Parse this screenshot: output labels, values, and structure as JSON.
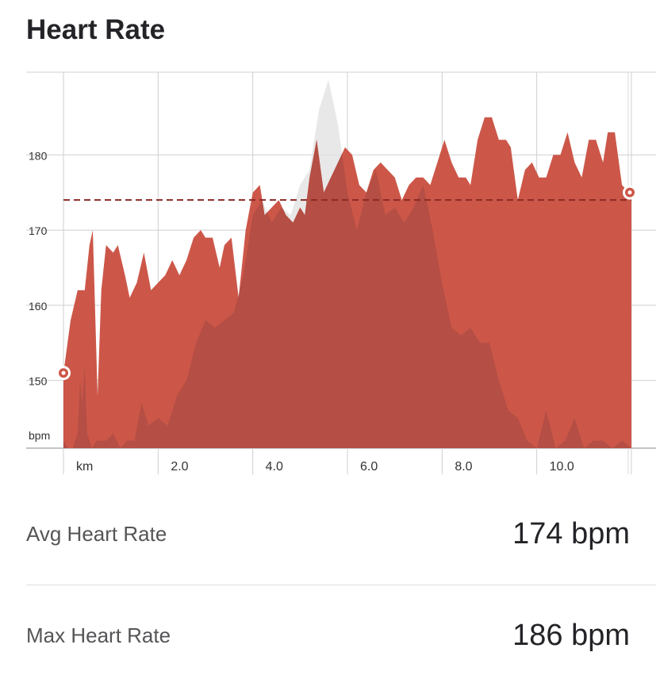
{
  "header": {
    "title": "Heart Rate"
  },
  "chart_data": {
    "type": "area",
    "title": "",
    "xlabel": "km",
    "ylabel": "bpm",
    "xlim": [
      0,
      12
    ],
    "ylim": [
      141,
      191
    ],
    "x_ticks": [
      2.0,
      4.0,
      6.0,
      8.0,
      10.0
    ],
    "x_tick_labels": [
      "2.0",
      "4.0",
      "6.0",
      "8.0",
      "10.0"
    ],
    "y_ticks": [
      150,
      160,
      170,
      180
    ],
    "y_tick_labels": [
      "150",
      "160",
      "170",
      "180"
    ],
    "grid": true,
    "average_line": 174,
    "start_marker": {
      "x": 0.0,
      "y": 151
    },
    "end_marker": {
      "x": 12.0,
      "y": 175
    },
    "colors": {
      "primary": "#cc5749",
      "secondary": "#b04c43",
      "comparison": "#e0e0e0",
      "average_line": "#8b2a25"
    },
    "series": [
      {
        "x": [
          0.0,
          0.15,
          0.3,
          0.45,
          0.55,
          0.62,
          0.72,
          0.8,
          0.9,
          1.05,
          1.15,
          1.3,
          1.4,
          1.55,
          1.7,
          1.85,
          2.0,
          2.15,
          2.3,
          2.45,
          2.6,
          2.75,
          2.9,
          3.0,
          3.15,
          3.3,
          3.4,
          3.55,
          3.7,
          3.85,
          4.0,
          4.15,
          4.25,
          4.4,
          4.55,
          4.7,
          4.85,
          5.0,
          5.1,
          5.2,
          5.35,
          5.5,
          5.65,
          5.8,
          5.95,
          6.1,
          6.25,
          6.4,
          6.55,
          6.7,
          6.85,
          7.0,
          7.15,
          7.3,
          7.45,
          7.6,
          7.75,
          7.9,
          8.05,
          8.2,
          8.35,
          8.5,
          8.6,
          8.75,
          8.9,
          9.05,
          9.2,
          9.35,
          9.45,
          9.6,
          9.75,
          9.9,
          10.05,
          10.2,
          10.35,
          10.5,
          10.65,
          10.8,
          10.95,
          11.1,
          11.25,
          11.4,
          11.5,
          11.65,
          11.8,
          11.95,
          12.0
        ],
        "y": [
          151,
          158,
          162,
          162,
          168,
          170,
          148,
          162,
          168,
          167,
          168,
          164,
          161,
          163,
          167,
          162,
          163,
          164,
          166,
          164,
          166,
          169,
          170,
          169,
          169,
          165,
          168,
          169,
          161,
          170,
          175,
          176,
          172,
          173,
          174,
          172,
          171,
          173,
          172,
          177,
          182,
          175,
          177,
          179,
          181,
          180,
          176,
          175,
          178,
          179,
          178,
          177,
          174,
          176,
          177,
          177,
          176,
          179,
          182,
          179,
          177,
          177,
          176,
          182,
          185,
          185,
          182,
          182,
          181,
          174,
          178,
          179,
          177,
          177,
          180,
          180,
          183,
          179,
          177,
          182,
          182,
          179,
          183,
          183,
          176,
          175,
          175
        ]
      },
      {
        "x": [
          0.0,
          0.1,
          0.2,
          0.3,
          0.35,
          0.4,
          0.45,
          0.5,
          0.6,
          0.7,
          0.8,
          0.9,
          1.05,
          1.2,
          1.35,
          1.5,
          1.65,
          1.8,
          2.0,
          2.2,
          2.4,
          2.6,
          2.8,
          3.0,
          3.2,
          3.4,
          3.6,
          3.8,
          4.0,
          4.2,
          4.4,
          4.6,
          4.8,
          5.0,
          5.2,
          5.4,
          5.6,
          5.8,
          6.0,
          6.2,
          6.4,
          6.6,
          6.8,
          7.0,
          7.2,
          7.4,
          7.6,
          7.8,
          8.0,
          8.2,
          8.4,
          8.6,
          8.8,
          9.0,
          9.2,
          9.4,
          9.6,
          9.8,
          10.0,
          10.2,
          10.4,
          10.6,
          10.8,
          11.0,
          11.2,
          11.4,
          11.6,
          11.8,
          12.0
        ],
        "y": [
          142,
          141,
          141,
          143,
          150,
          147,
          152,
          143,
          141,
          142,
          142,
          142,
          143,
          141,
          142,
          142,
          147,
          144,
          145,
          144,
          148,
          150,
          155,
          158,
          157,
          158,
          159,
          164,
          172,
          174,
          171,
          173,
          172,
          176,
          178,
          186,
          190,
          184,
          175,
          170,
          175,
          178,
          172,
          173,
          171,
          173,
          176,
          170,
          163,
          157,
          156,
          157,
          155,
          155,
          150,
          146,
          145,
          142,
          141,
          146,
          141,
          142,
          145,
          141,
          142,
          142,
          141,
          142,
          141
        ]
      }
    ]
  },
  "stats": {
    "avg": {
      "label": "Avg Heart Rate",
      "value": "174 bpm"
    },
    "max": {
      "label": "Max Heart Rate",
      "value": "186 bpm"
    }
  }
}
